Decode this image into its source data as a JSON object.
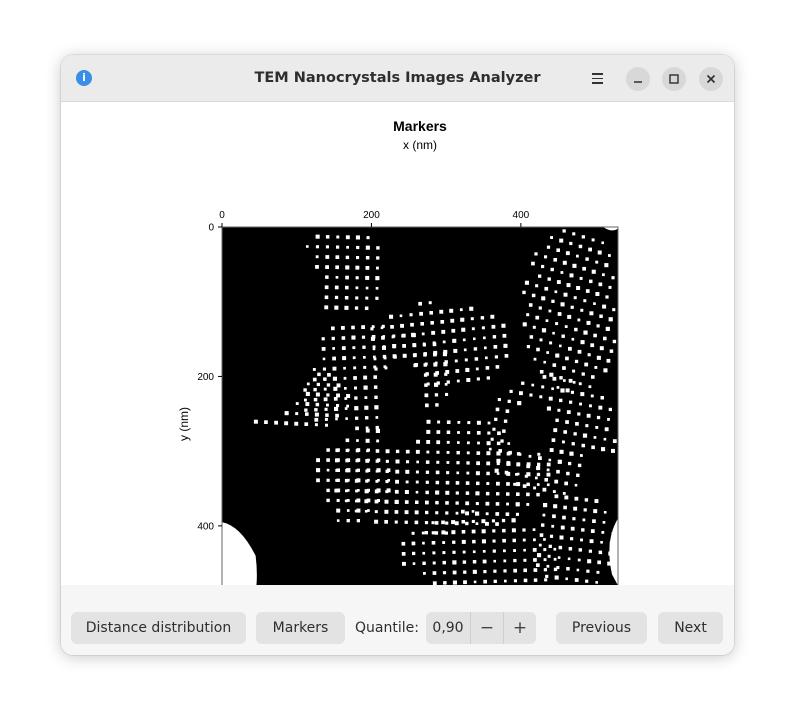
{
  "window": {
    "title": "TEM Nanocrystals Images Analyzer"
  },
  "plot": {
    "title": "Markers",
    "xlabel": "x (nm)",
    "ylabel": "y (nm)",
    "xticks": [
      "0",
      "200",
      "400"
    ],
    "yticks": [
      "0",
      "200",
      "400"
    ],
    "xlim": [
      0,
      530
    ],
    "ylim": [
      0,
      530
    ],
    "image": "binary TEM nanocrystal marker image (white markers on black)"
  },
  "bottombar": {
    "distance_label": "Distance distribution",
    "markers_label": "Markers",
    "quantile_label": "Quantile:",
    "quantile_value": "0,90",
    "minus_label": "−",
    "plus_label": "+",
    "previous_label": "Previous",
    "next_label": "Next"
  },
  "colors": {
    "titlebar": "#ebebeb",
    "button": "#e3e3e3",
    "info_icon": "#3a8ee6"
  }
}
